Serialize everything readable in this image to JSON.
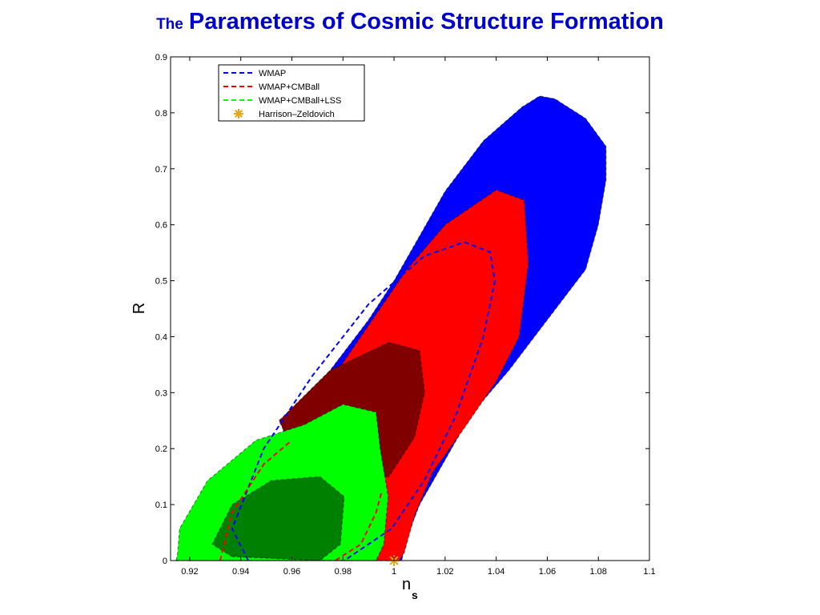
{
  "chart_data": {
    "type": "contour",
    "title_parts": [
      "The",
      "Parameters of Cosmic Structure Formation"
    ],
    "xlabel": "n",
    "xlabel_subscript": "s",
    "ylabel": "R",
    "xlim": [
      0.9125,
      1.1
    ],
    "ylim": [
      0,
      0.9
    ],
    "xticks": [
      0.92,
      0.94,
      0.96,
      0.98,
      1,
      1.02,
      1.04,
      1.06,
      1.08,
      1.1
    ],
    "yticks": [
      0,
      0.1,
      0.2,
      0.3,
      0.4,
      0.5,
      0.6,
      0.7,
      0.8,
      0.9
    ],
    "series": [
      {
        "name": "WMAP",
        "color": "#0000ff",
        "filled": [
          {
            "color": "#0000ff",
            "x": [
              0.919,
              0.918,
              0.93,
              0.945,
              0.96,
              0.975,
              0.99,
              1.0,
              1.01,
              1.02,
              1.035,
              1.05,
              1.057,
              1.063,
              1.075,
              1.083,
              1.083,
              1.08,
              1.075,
              1.065,
              1.055,
              1.045,
              1.03,
              1.02,
              1.01,
              1.005,
              1.003
            ],
            "y": [
              0.0,
              0.04,
              0.1,
              0.17,
              0.25,
              0.34,
              0.43,
              0.5,
              0.58,
              0.66,
              0.75,
              0.81,
              0.83,
              0.825,
              0.79,
              0.74,
              0.68,
              0.6,
              0.52,
              0.46,
              0.4,
              0.34,
              0.26,
              0.18,
              0.1,
              0.04,
              0.0
            ]
          }
        ],
        "dashed": {
          "x": [
            0.9429,
            0.9366,
            0.949,
            0.968,
            0.99,
            1.0118,
            1.0275,
            1.0376,
            1.0395,
            1.035,
            1.024,
            1.0118,
            0.999,
            0.9805
          ],
          "y": [
            0,
            0.057,
            0.2,
            0.33,
            0.458,
            0.544,
            0.569,
            0.551,
            0.5,
            0.4,
            0.257,
            0.143,
            0.057,
            0
          ]
        }
      },
      {
        "name": "WMAP+CMBall",
        "color": "#ff0000",
        "filled": [
          {
            "color": "#ff0000",
            "x": [
              0.92,
              0.919,
              0.93,
              0.945,
              0.96,
              0.975,
              0.99,
              1.005,
              1.02,
              1.04,
              1.051,
              1.0526,
              1.049,
              1.04,
              1.028,
              1.015,
              1.008,
              1.004,
              1.002
            ],
            "y": [
              0.0,
              0.03,
              0.08,
              0.14,
              0.22,
              0.32,
              0.42,
              0.52,
              0.6,
              0.662,
              0.644,
              0.53,
              0.4,
              0.32,
              0.24,
              0.157,
              0.08,
              0.014,
              0.0
            ]
          },
          {
            "color": "#800000",
            "x": [
              0.955,
              0.975,
              0.998,
              1.01,
              1.012,
              1.008,
              0.998,
              0.98,
              0.96
            ],
            "y": [
              0.25,
              0.34,
              0.39,
              0.375,
              0.3,
              0.22,
              0.15,
              0.14,
              0.2
            ]
          }
        ],
        "dashed": {
          "x": [
            0.9319,
            0.9366,
            0.949,
            0.96,
            null,
            0.995,
            0.993,
            0.987,
            0.977
          ],
          "y": [
            0,
            0.086,
            0.172,
            0.215,
            null,
            0.12,
            0.086,
            0.029,
            0
          ]
        }
      },
      {
        "name": "WMAP+CMBall+LSS",
        "color": "#00ff00",
        "filled": [
          {
            "color": "#00ff00",
            "x": [
              0.9147,
              0.9153,
              0.916,
              0.927,
              0.946,
              0.965,
              0.98,
              0.993,
              0.9946,
              0.9977,
              0.996,
              0.993
            ],
            "y": [
              0,
              0.014,
              0.057,
              0.143,
              0.215,
              0.243,
              0.279,
              0.265,
              0.2,
              0.114,
              0.029,
              0
            ]
          },
          {
            "color": "#008000",
            "x": [
              0.9366,
              0.9288,
              0.9366,
              0.952,
              0.971,
              0.9805,
              0.979,
              0.971
            ],
            "y": [
              0.007,
              0.029,
              0.1,
              0.143,
              0.15,
              0.114,
              0.029,
              0
            ]
          }
        ],
        "dashed": {
          "x": [
            0.9162,
            0.9175,
            0.9205,
            0.9208
          ],
          "y": [
            0,
            0.035,
            0.035,
            0
          ]
        }
      }
    ],
    "markers": [
      {
        "name": "Harrison–Zeldovich",
        "color": "#e8a317",
        "x": 1,
        "y": 0
      }
    ]
  }
}
